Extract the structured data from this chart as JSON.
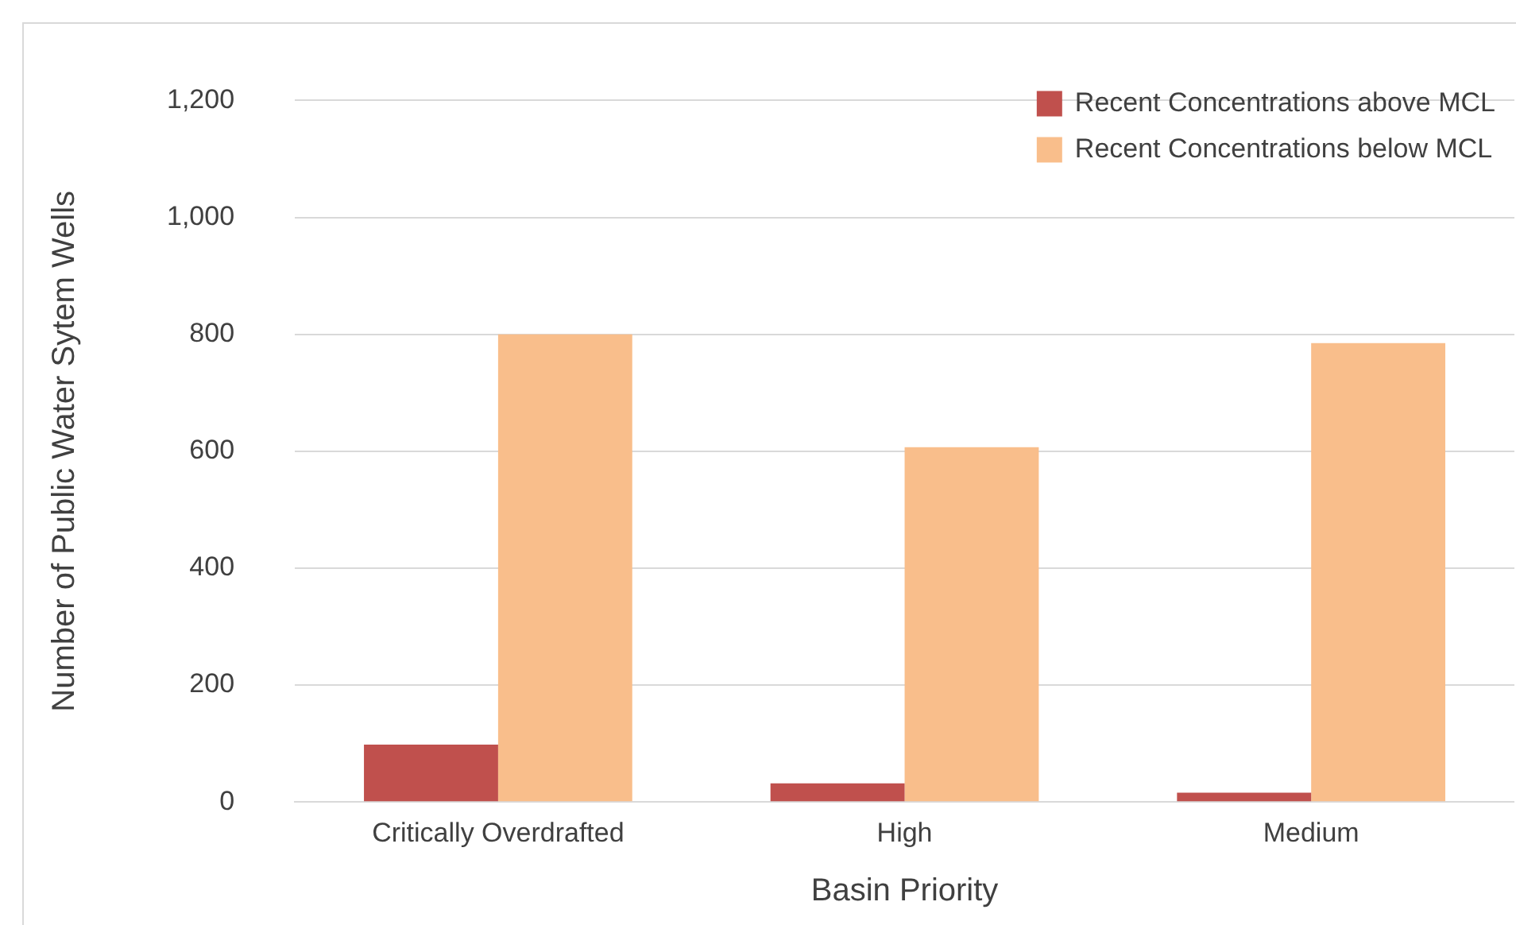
{
  "chart_data": {
    "type": "bar",
    "xlabel": "Basin Priority",
    "ylabel": "Number of Public Water Sytem Wells",
    "categories": [
      "Critically Overdrafted",
      "High",
      "Medium"
    ],
    "series": [
      {
        "name": "Recent Concentrations above MCL",
        "color": "#c0504d",
        "values": [
          98,
          32,
          16
        ]
      },
      {
        "name": "Recent Concentrations below MCL",
        "color": "#f9be8b",
        "values": [
          800,
          607,
          785
        ]
      }
    ],
    "ylim": [
      0,
      1200
    ],
    "yticks": [
      {
        "value": 0,
        "label": "0"
      },
      {
        "value": 200,
        "label": "200"
      },
      {
        "value": 400,
        "label": "400"
      },
      {
        "value": 600,
        "label": "600"
      },
      {
        "value": 800,
        "label": "800"
      },
      {
        "value": 1000,
        "label": "1,000"
      },
      {
        "value": 1200,
        "label": "1,200"
      }
    ],
    "grid": "y",
    "legend": "top right"
  }
}
